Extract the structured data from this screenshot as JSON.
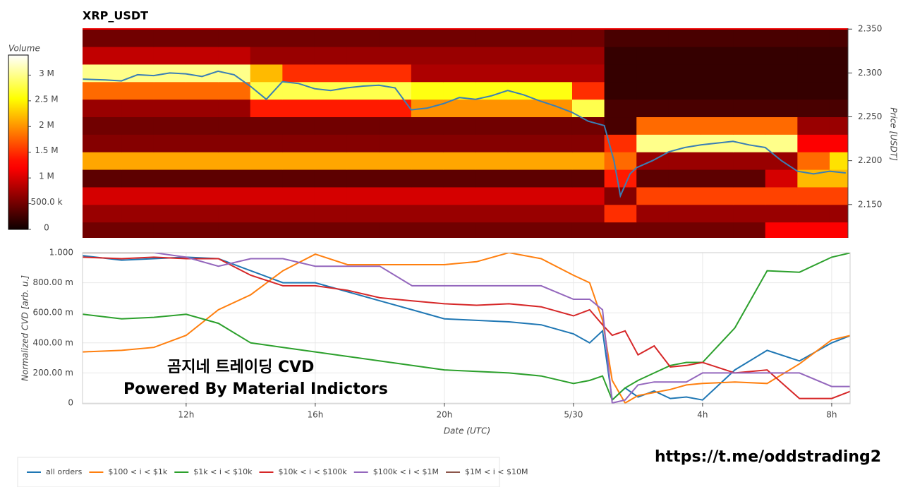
{
  "chart_data": [
    {
      "type": "heatmap",
      "title": "XRP_USDT",
      "y_label": "Price [USDT]",
      "xlim": [
        8.79,
        32.57
      ],
      "ylim": [
        2.112,
        2.351
      ],
      "yticks": [
        {
          "value": 2.15,
          "label": "2.150"
        },
        {
          "value": 2.2,
          "label": "2.200"
        },
        {
          "value": 2.25,
          "label": "2.250"
        },
        {
          "value": 2.3,
          "label": "2.300"
        },
        {
          "value": 2.35,
          "label": "2.350"
        }
      ],
      "xbins": [
        8,
        9,
        10,
        11,
        12,
        13,
        14,
        15,
        16,
        17,
        18,
        19,
        20,
        21,
        22,
        23,
        24,
        25,
        26,
        27,
        28,
        29,
        30,
        31,
        32,
        33
      ],
      "ybins": [
        2.11,
        2.13,
        2.15,
        2.17,
        2.19,
        2.21,
        2.23,
        2.25,
        2.27,
        2.29,
        2.31,
        2.33,
        2.35
      ],
      "values": [
        [
          500000,
          500000,
          500000,
          500000,
          500000,
          500000,
          500000,
          500000,
          500000,
          500000,
          500000,
          500000,
          500000,
          500000,
          500000,
          500000,
          500000,
          500000,
          500000,
          500000,
          500000,
          500000,
          1200000,
          1200000,
          1200000
        ],
        [
          700000,
          700000,
          700000,
          700000,
          700000,
          700000,
          700000,
          700000,
          700000,
          700000,
          700000,
          700000,
          700000,
          700000,
          700000,
          700000,
          700000,
          1500000,
          700000,
          700000,
          700000,
          700000,
          700000,
          700000,
          700000
        ],
        [
          1000000,
          1000000,
          1000000,
          1000000,
          1000000,
          1000000,
          1000000,
          1000000,
          1000000,
          1000000,
          1000000,
          1000000,
          1000000,
          1000000,
          1000000,
          1000000,
          1000000,
          600000,
          1600000,
          1600000,
          1600000,
          1600000,
          1600000,
          1600000,
          1600000
        ],
        [
          400000,
          400000,
          400000,
          400000,
          400000,
          400000,
          400000,
          400000,
          400000,
          400000,
          400000,
          400000,
          400000,
          400000,
          400000,
          400000,
          400000,
          1400000,
          400000,
          400000,
          400000,
          400000,
          1000000,
          2200000,
          2200000
        ],
        [
          2100000,
          2100000,
          2100000,
          2100000,
          2100000,
          2100000,
          2100000,
          2100000,
          2100000,
          2100000,
          2100000,
          2100000,
          2100000,
          2100000,
          2100000,
          2100000,
          2100000,
          1800000,
          700000,
          700000,
          700000,
          700000,
          700000,
          1800000,
          2400000
        ],
        [
          600000,
          600000,
          600000,
          600000,
          600000,
          600000,
          600000,
          600000,
          600000,
          600000,
          600000,
          600000,
          600000,
          600000,
          600000,
          600000,
          600000,
          1500000,
          3000000,
          3000000,
          3000000,
          3000000,
          3000000,
          1200000,
          1200000
        ],
        [
          500000,
          500000,
          500000,
          500000,
          500000,
          500000,
          500000,
          500000,
          500000,
          500000,
          500000,
          500000,
          500000,
          500000,
          500000,
          500000,
          500000,
          300000,
          1800000,
          1800000,
          1800000,
          1800000,
          1800000,
          700000,
          700000
        ],
        [
          700000,
          700000,
          700000,
          700000,
          700000,
          700000,
          1400000,
          1400000,
          1400000,
          1400000,
          1400000,
          2000000,
          2000000,
          2000000,
          2000000,
          2000000,
          2800000,
          300000,
          300000,
          300000,
          300000,
          300000,
          300000,
          300000,
          300000
        ],
        [
          1800000,
          1800000,
          1800000,
          1800000,
          1800000,
          1800000,
          2800000,
          2800000,
          2800000,
          2800000,
          2800000,
          2600000,
          2600000,
          2600000,
          2600000,
          2600000,
          1500000,
          200000,
          200000,
          200000,
          200000,
          200000,
          200000,
          200000,
          200000
        ],
        [
          3000000,
          3000000,
          3000000,
          3000000,
          3000000,
          3000000,
          2200000,
          1500000,
          1500000,
          1500000,
          1500000,
          800000,
          800000,
          800000,
          800000,
          800000,
          800000,
          200000,
          200000,
          200000,
          200000,
          200000,
          200000,
          200000,
          200000
        ],
        [
          900000,
          900000,
          900000,
          900000,
          900000,
          900000,
          700000,
          700000,
          700000,
          700000,
          700000,
          700000,
          700000,
          700000,
          700000,
          700000,
          700000,
          200000,
          200000,
          200000,
          200000,
          200000,
          200000,
          200000,
          200000
        ],
        [
          500000,
          500000,
          500000,
          500000,
          500000,
          500000,
          500000,
          500000,
          500000,
          500000,
          500000,
          500000,
          500000,
          500000,
          500000,
          500000,
          500000,
          300000,
          300000,
          300000,
          300000,
          300000,
          300000,
          300000,
          300000
        ]
      ],
      "colorbar": {
        "title": "Volume",
        "lim": [
          0,
          3390000
        ],
        "ticks": [
          0,
          {
            "value": 500000,
            "label": "500.0 k"
          },
          {
            "value": 1000000,
            "label": "1 M"
          },
          {
            "value": 1500000,
            "label": "1.5 M"
          },
          {
            "value": 2000000,
            "label": "2 M"
          },
          {
            "value": 2500000,
            "label": "2.5 M"
          },
          {
            "value": 3000000,
            "label": "3 M"
          }
        ]
      },
      "price": {
        "color": "#3a7fb5",
        "x": [
          8.8,
          9.5,
          10,
          10.5,
          11,
          11.5,
          12,
          12.5,
          13,
          13.5,
          14,
          14.5,
          15,
          15.5,
          16,
          16.5,
          17,
          17.5,
          18,
          18.5,
          19,
          19.5,
          20,
          20.5,
          21,
          21.5,
          22,
          22.5,
          23,
          23.5,
          24,
          24.5,
          25,
          25.3,
          25.5,
          25.8,
          26,
          26.5,
          27,
          27.5,
          28,
          28.5,
          29,
          29.5,
          30,
          30.5,
          31,
          31.5,
          32,
          32.5
        ],
        "values": [
          2.293,
          2.292,
          2.291,
          2.298,
          2.297,
          2.3,
          2.299,
          2.296,
          2.302,
          2.298,
          2.285,
          2.27,
          2.29,
          2.288,
          2.282,
          2.28,
          2.283,
          2.285,
          2.286,
          2.283,
          2.258,
          2.26,
          2.265,
          2.272,
          2.27,
          2.274,
          2.28,
          2.275,
          2.268,
          2.262,
          2.255,
          2.245,
          2.24,
          2.2,
          2.16,
          2.185,
          2.192,
          2.2,
          2.21,
          2.215,
          2.218,
          2.22,
          2.222,
          2.218,
          2.215,
          2.2,
          2.188,
          2.185,
          2.188,
          2.186
        ]
      }
    },
    {
      "type": "line",
      "y_label": "Normalized CVD [arb. u.]",
      "x_label": "Date (UTC)",
      "xlim": [
        8.79,
        32.57
      ],
      "ylim": [
        0,
        1.0
      ],
      "grid": true,
      "legend": "bottom",
      "xticks": [
        {
          "value": 12,
          "label": "12h"
        },
        {
          "value": 16,
          "label": "16h"
        },
        {
          "value": 20,
          "label": "20h"
        },
        {
          "value": 24,
          "label": "5/30"
        },
        {
          "value": 28,
          "label": "4h"
        },
        {
          "value": 32,
          "label": "8h"
        }
      ],
      "yticks": [
        0,
        {
          "value": 0.2,
          "label": "200.00 m"
        },
        {
          "value": 0.4,
          "label": "400.00 m"
        },
        {
          "value": 0.6,
          "label": "600.00 m"
        },
        {
          "value": 0.8,
          "label": "800.00 m"
        },
        {
          "value": 1.0,
          "label": "1.000"
        }
      ],
      "x": [
        8.8,
        10,
        11,
        12,
        13,
        14,
        15,
        16,
        17,
        18,
        19,
        20,
        21,
        22,
        23,
        24,
        24.5,
        24.9,
        25.2,
        25.6,
        26,
        26.5,
        27,
        27.5,
        28,
        29,
        30,
        31,
        32,
        32.6
      ],
      "series": [
        {
          "name": "all orders",
          "color": "#1f77b4",
          "values": [
            0.98,
            0.95,
            0.96,
            0.97,
            0.96,
            0.88,
            0.8,
            0.8,
            0.74,
            0.68,
            0.62,
            0.56,
            0.55,
            0.54,
            0.52,
            0.46,
            0.4,
            0.48,
            0.02,
            0.1,
            0.04,
            0.08,
            0.03,
            0.04,
            0.02,
            0.22,
            0.35,
            0.28,
            0.4,
            0.45
          ]
        },
        {
          "name": "$100 < i < $1k",
          "color": "#ff7f0e",
          "values": [
            0.34,
            0.35,
            0.37,
            0.45,
            0.62,
            0.72,
            0.88,
            0.99,
            0.92,
            0.92,
            0.92,
            0.92,
            0.94,
            1.0,
            0.96,
            0.85,
            0.8,
            0.55,
            0.15,
            0.0,
            0.05,
            0.07,
            0.09,
            0.12,
            0.13,
            0.14,
            0.13,
            0.26,
            0.42,
            0.45
          ]
        },
        {
          "name": "$1k < i < $10k",
          "color": "#2ca02c",
          "values": [
            0.59,
            0.56,
            0.57,
            0.59,
            0.53,
            0.4,
            0.37,
            0.34,
            0.31,
            0.28,
            0.25,
            0.22,
            0.21,
            0.2,
            0.18,
            0.13,
            0.15,
            0.18,
            0.02,
            0.1,
            0.15,
            0.2,
            0.25,
            0.27,
            0.27,
            0.5,
            0.88,
            0.87,
            0.97,
            1.0
          ]
        },
        {
          "name": "$10k < i < $100k",
          "color": "#d62728",
          "values": [
            0.97,
            0.96,
            0.97,
            0.96,
            0.96,
            0.85,
            0.78,
            0.78,
            0.75,
            0.7,
            0.68,
            0.66,
            0.65,
            0.66,
            0.64,
            0.58,
            0.62,
            0.52,
            0.45,
            0.48,
            0.32,
            0.38,
            0.24,
            0.25,
            0.27,
            0.2,
            0.22,
            0.03,
            0.03,
            0.08
          ]
        },
        {
          "name": "$100k < i < $1M",
          "color": "#9467bd",
          "values": [
            1.0,
            1.0,
            1.0,
            0.97,
            0.91,
            0.96,
            0.96,
            0.91,
            0.91,
            0.91,
            0.78,
            0.78,
            0.78,
            0.78,
            0.78,
            0.69,
            0.69,
            0.62,
            0.0,
            0.02,
            0.12,
            0.14,
            0.14,
            0.14,
            0.2,
            0.2,
            0.2,
            0.2,
            0.11,
            0.11
          ]
        },
        {
          "name": "$1M < i < $10M",
          "color": "#8c564b",
          "values": [
            1.0,
            1.0,
            1.0,
            null,
            null,
            null,
            null,
            null,
            null,
            null,
            null,
            null,
            null,
            null,
            null,
            null,
            null,
            null,
            null,
            null,
            null,
            null,
            null,
            null,
            null,
            null,
            null,
            null,
            null,
            null
          ]
        }
      ],
      "annotations": [
        "곰지네 트레이딩 CVD",
        "Powered By Material Indictors"
      ]
    }
  ],
  "footer_link": "https://t.me/oddstrading2"
}
